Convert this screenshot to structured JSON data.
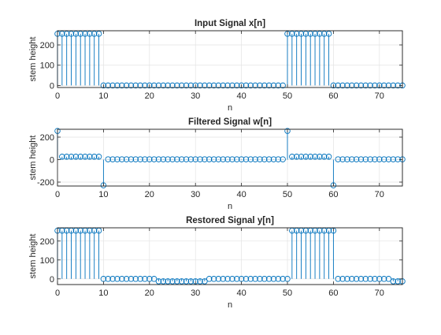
{
  "chart_data": [
    {
      "type": "stem",
      "title": "Input Signal x[n]",
      "xlabel": "n",
      "ylabel": "stem height",
      "xlim": [
        0,
        75
      ],
      "ylim": [
        -10,
        270
      ],
      "xticks": [
        0,
        10,
        20,
        30,
        40,
        50,
        60,
        70
      ],
      "yticks": [
        0,
        100,
        200
      ],
      "grid": true,
      "color": "#0072BD",
      "x": [
        0,
        1,
        2,
        3,
        4,
        5,
        6,
        7,
        8,
        9,
        10,
        11,
        12,
        13,
        14,
        15,
        16,
        17,
        18,
        19,
        20,
        21,
        22,
        23,
        24,
        25,
        26,
        27,
        28,
        29,
        30,
        31,
        32,
        33,
        34,
        35,
        36,
        37,
        38,
        39,
        40,
        41,
        42,
        43,
        44,
        45,
        46,
        47,
        48,
        49,
        50,
        51,
        52,
        53,
        54,
        55,
        56,
        57,
        58,
        59,
        60,
        61,
        62,
        63,
        64,
        65,
        66,
        67,
        68,
        69,
        70,
        71,
        72,
        73,
        74,
        75
      ],
      "values": [
        255,
        255,
        255,
        255,
        255,
        255,
        255,
        255,
        255,
        255,
        0,
        0,
        0,
        0,
        0,
        0,
        0,
        0,
        0,
        0,
        0,
        0,
        0,
        0,
        0,
        0,
        0,
        0,
        0,
        0,
        0,
        0,
        0,
        0,
        0,
        0,
        0,
        0,
        0,
        0,
        0,
        0,
        0,
        0,
        0,
        0,
        0,
        0,
        0,
        0,
        255,
        255,
        255,
        255,
        255,
        255,
        255,
        255,
        255,
        255,
        0,
        0,
        0,
        0,
        0,
        0,
        0,
        0,
        0,
        0,
        0,
        0,
        0,
        0,
        0,
        0
      ]
    },
    {
      "type": "stem",
      "title": "Filtered Signal w[n]",
      "xlabel": "n",
      "ylabel": "stem height",
      "xlim": [
        0,
        75
      ],
      "ylim": [
        -235,
        270
      ],
      "xticks": [
        0,
        10,
        20,
        30,
        40,
        50,
        60,
        70
      ],
      "yticks": [
        -200,
        0,
        200
      ],
      "grid": true,
      "color": "#0072BD",
      "x": [
        0,
        1,
        2,
        3,
        4,
        5,
        6,
        7,
        8,
        9,
        10,
        11,
        12,
        13,
        14,
        15,
        16,
        17,
        18,
        19,
        20,
        21,
        22,
        23,
        24,
        25,
        26,
        27,
        28,
        29,
        30,
        31,
        32,
        33,
        34,
        35,
        36,
        37,
        38,
        39,
        40,
        41,
        42,
        43,
        44,
        45,
        46,
        47,
        48,
        49,
        50,
        51,
        52,
        53,
        54,
        55,
        56,
        57,
        58,
        59,
        60,
        61,
        62,
        63,
        64,
        65,
        66,
        67,
        68,
        69,
        70,
        71,
        72,
        73,
        74,
        75
      ],
      "values": [
        255,
        26,
        26,
        26,
        26,
        26,
        26,
        26,
        26,
        26,
        -229,
        3,
        3,
        3,
        3,
        3,
        3,
        3,
        3,
        3,
        3,
        3,
        3,
        3,
        3,
        3,
        3,
        3,
        3,
        3,
        3,
        3,
        3,
        3,
        3,
        3,
        3,
        3,
        3,
        3,
        3,
        3,
        3,
        3,
        3,
        3,
        3,
        3,
        3,
        3,
        255,
        26,
        26,
        26,
        26,
        26,
        26,
        26,
        26,
        26,
        -229,
        3,
        3,
        3,
        3,
        3,
        3,
        3,
        3,
        3,
        3,
        3,
        3,
        3,
        3,
        3
      ]
    },
    {
      "type": "stem",
      "title": "Restored Signal y[n]",
      "xlabel": "n",
      "ylabel": "stem height",
      "xlim": [
        0,
        75
      ],
      "ylim": [
        -30,
        270
      ],
      "xticks": [
        0,
        10,
        20,
        30,
        40,
        50,
        60,
        70
      ],
      "yticks": [
        0,
        100,
        200
      ],
      "grid": true,
      "color": "#0072BD",
      "x": [
        0,
        1,
        2,
        3,
        4,
        5,
        6,
        7,
        8,
        9,
        10,
        11,
        12,
        13,
        14,
        15,
        16,
        17,
        18,
        19,
        20,
        21,
        22,
        23,
        24,
        25,
        26,
        27,
        28,
        29,
        30,
        31,
        32,
        33,
        34,
        35,
        36,
        37,
        38,
        39,
        40,
        41,
        42,
        43,
        44,
        45,
        46,
        47,
        48,
        49,
        50,
        51,
        52,
        53,
        54,
        55,
        56,
        57,
        58,
        59,
        60,
        61,
        62,
        63,
        64,
        65,
        66,
        67,
        68,
        69,
        70,
        71,
        72,
        73,
        74,
        75
      ],
      "values": [
        255,
        255,
        255,
        255,
        255,
        255,
        255,
        255,
        255,
        255,
        0,
        0,
        0,
        0,
        0,
        0,
        0,
        0,
        0,
        0,
        0,
        0,
        -13,
        -13,
        -13,
        -13,
        -13,
        -13,
        -13,
        -13,
        -13,
        -13,
        -13,
        0,
        0,
        0,
        0,
        0,
        0,
        0,
        0,
        0,
        0,
        0,
        0,
        0,
        0,
        0,
        0,
        0,
        0,
        255,
        255,
        255,
        255,
        255,
        255,
        255,
        255,
        255,
        255,
        0,
        0,
        0,
        0,
        0,
        0,
        0,
        0,
        0,
        0,
        0,
        0,
        -13,
        -13,
        -13
      ]
    }
  ]
}
